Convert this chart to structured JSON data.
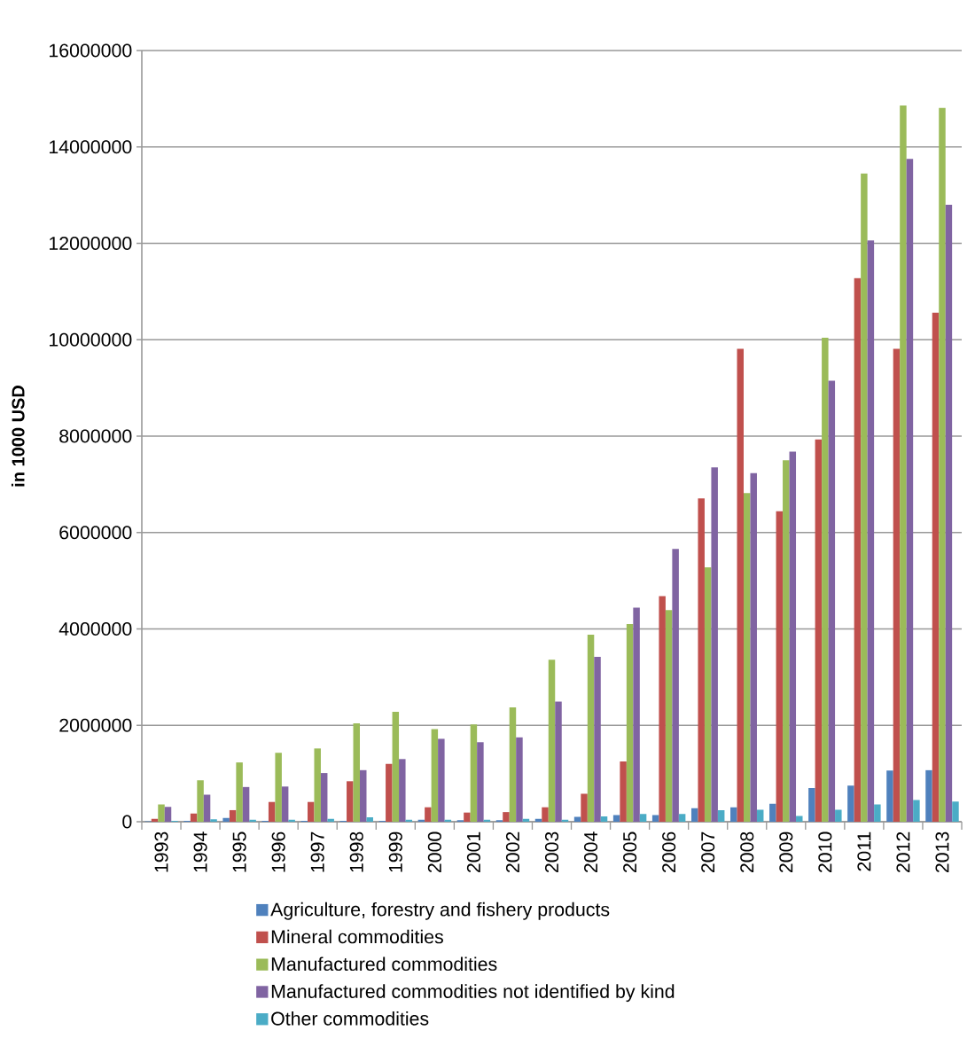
{
  "chart_data": {
    "type": "bar",
    "ylabel": "in 1000 USD",
    "categories": [
      "1993",
      "1994",
      "1995",
      "1996",
      "1997",
      "1998",
      "1999",
      "2000",
      "2001",
      "2002",
      "2003",
      "2004",
      "2005",
      "2006",
      "2007",
      "2008",
      "2009",
      "2010",
      "2011",
      "2012",
      "2013"
    ],
    "series": [
      {
        "name": "Agriculture, forestry and fishery products",
        "color": "#4f81bd",
        "values": [
          10000,
          20000,
          80000,
          20000,
          20000,
          20000,
          20000,
          40000,
          30000,
          30000,
          60000,
          100000,
          140000,
          140000,
          280000,
          300000,
          370000,
          700000,
          750000,
          1060000,
          1070000
        ]
      },
      {
        "name": "Mineral commodities",
        "color": "#c0504d",
        "values": [
          60000,
          170000,
          240000,
          410000,
          410000,
          840000,
          1200000,
          300000,
          190000,
          200000,
          300000,
          580000,
          1250000,
          4680000,
          6710000,
          9810000,
          6440000,
          7930000,
          11280000,
          9810000,
          10560000
        ]
      },
      {
        "name": "Manufactured commodities",
        "color": "#9bbb59",
        "values": [
          360000,
          860000,
          1230000,
          1430000,
          1520000,
          2040000,
          2280000,
          1920000,
          2020000,
          2370000,
          3360000,
          3880000,
          4100000,
          4390000,
          5280000,
          6820000,
          7500000,
          10040000,
          13450000,
          14860000,
          14810000
        ]
      },
      {
        "name": "Manufactured commodities not identified by kind",
        "color": "#8064a2",
        "values": [
          310000,
          560000,
          720000,
          730000,
          1010000,
          1070000,
          1300000,
          1720000,
          1650000,
          1750000,
          2490000,
          3420000,
          4440000,
          5660000,
          7350000,
          7230000,
          7680000,
          9150000,
          12060000,
          13750000,
          12800000
        ]
      },
      {
        "name": "Other commodities",
        "color": "#4bacc6",
        "values": [
          20000,
          50000,
          40000,
          40000,
          60000,
          90000,
          40000,
          40000,
          40000,
          60000,
          40000,
          110000,
          160000,
          160000,
          240000,
          250000,
          120000,
          250000,
          360000,
          450000,
          420000
        ]
      }
    ],
    "ylim": [
      0,
      16000000
    ],
    "yticks": [
      0,
      2000000,
      4000000,
      6000000,
      8000000,
      10000000,
      12000000,
      14000000,
      16000000
    ],
    "grid": "y",
    "legend": "bottom"
  }
}
